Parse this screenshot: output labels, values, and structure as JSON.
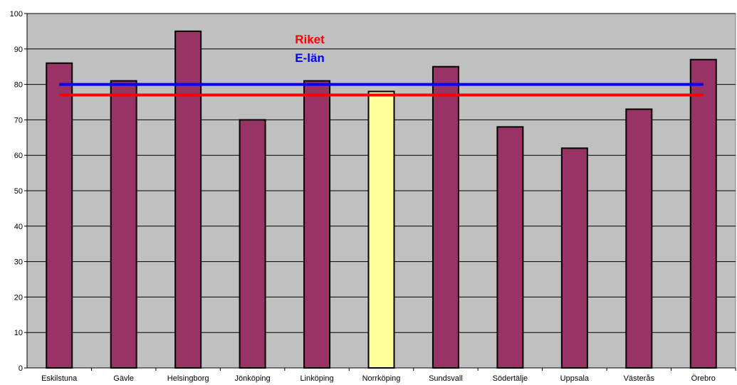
{
  "chart_data": {
    "type": "bar",
    "categories": [
      "Eskilstuna",
      "Gävle",
      "Helsingborg",
      "Jönköping",
      "Linköping",
      "Norrköping",
      "Sundsvall",
      "Södertälje",
      "Uppsala",
      "Västerås",
      "Örebro"
    ],
    "values": [
      86,
      81,
      95,
      70,
      81,
      78,
      85,
      68,
      62,
      73,
      87
    ],
    "highlight_category": "Norrköping",
    "ylim": [
      0,
      100
    ],
    "yticks": [
      0,
      10,
      20,
      30,
      40,
      50,
      60,
      70,
      80,
      90,
      100
    ],
    "grid": true,
    "reference_lines": [
      {
        "name": "E-län",
        "value": 80,
        "color": "#0000ff"
      },
      {
        "name": "Riket",
        "value": 77,
        "color": "#ff0000"
      }
    ],
    "annotations": [
      {
        "text": "Riket",
        "color": "#ff0000"
      },
      {
        "text": "E-län",
        "color": "#0000ff"
      }
    ],
    "colors": {
      "bar": "#993366",
      "highlight_bar": "#ffff99",
      "plot_background": "#c0c0c0",
      "gridline": "#000000"
    }
  }
}
